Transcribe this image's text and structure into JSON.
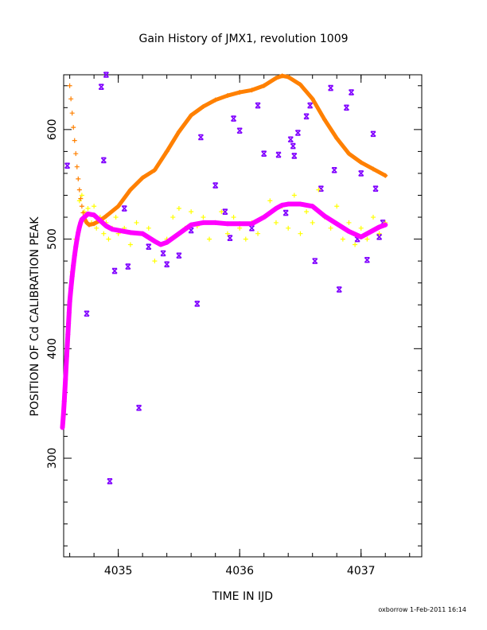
{
  "chart_data": {
    "type": "scatter",
    "title": "Gain History of JMX1, revolution 1009",
    "xlabel": "TIME IN IJD",
    "ylabel": "POSITION OF Cd CALIBRATION PEAK",
    "xlim": [
      4034.55,
      4037.5
    ],
    "ylim": [
      210,
      650
    ],
    "xticks": [
      4035,
      4036,
      4037
    ],
    "yticks": [
      300,
      400,
      500,
      600
    ],
    "grid": false,
    "legend": "none",
    "series": [
      {
        "marker": "x",
        "color": "#8000ff",
        "points": [
          [
            4034.58,
            567
          ],
          [
            4034.74,
            432
          ],
          [
            4034.86,
            639
          ],
          [
            4034.88,
            572
          ],
          [
            4034.9,
            650
          ],
          [
            4034.93,
            279
          ],
          [
            4034.97,
            471
          ],
          [
            4035.05,
            528
          ],
          [
            4035.08,
            475
          ],
          [
            4035.17,
            346
          ],
          [
            4035.25,
            493
          ],
          [
            4035.37,
            487
          ],
          [
            4035.4,
            477
          ],
          [
            4035.5,
            485
          ],
          [
            4035.6,
            508
          ],
          [
            4035.65,
            441
          ],
          [
            4035.68,
            593
          ],
          [
            4035.8,
            549
          ],
          [
            4035.88,
            525
          ],
          [
            4035.92,
            501
          ],
          [
            4035.95,
            610
          ],
          [
            4036.0,
            599
          ],
          [
            4036.1,
            510
          ],
          [
            4036.15,
            622
          ],
          [
            4036.2,
            578
          ],
          [
            4036.32,
            577
          ],
          [
            4036.38,
            524
          ],
          [
            4036.42,
            591
          ],
          [
            4036.45,
            576
          ],
          [
            4036.48,
            597
          ],
          [
            4036.55,
            612
          ],
          [
            4036.58,
            622
          ],
          [
            4036.62,
            480
          ],
          [
            4036.67,
            546
          ],
          [
            4036.75,
            638
          ],
          [
            4036.78,
            563
          ],
          [
            4036.82,
            454
          ],
          [
            4036.88,
            620
          ],
          [
            4036.92,
            634
          ],
          [
            4036.97,
            500
          ],
          [
            4037.0,
            560
          ],
          [
            4037.05,
            481
          ],
          [
            4037.1,
            596
          ],
          [
            4037.12,
            546
          ],
          [
            4037.15,
            502
          ],
          [
            4037.18,
            515
          ],
          [
            4036.44,
            585
          ]
        ]
      },
      {
        "marker": "+",
        "color": "#ffff00",
        "points": [
          [
            4034.62,
            470
          ],
          [
            4034.65,
            500
          ],
          [
            4034.68,
            535
          ],
          [
            4034.7,
            540
          ],
          [
            4034.72,
            525
          ],
          [
            4034.75,
            528
          ],
          [
            4034.78,
            515
          ],
          [
            4034.8,
            530
          ],
          [
            4034.82,
            510
          ],
          [
            4034.85,
            520
          ],
          [
            4034.88,
            505
          ],
          [
            4034.9,
            515
          ],
          [
            4034.92,
            500
          ],
          [
            4034.95,
            510
          ],
          [
            4034.98,
            520
          ],
          [
            4035.0,
            505
          ],
          [
            4035.05,
            510
          ],
          [
            4035.1,
            495
          ],
          [
            4035.15,
            515
          ],
          [
            4035.2,
            505
          ],
          [
            4035.25,
            510
          ],
          [
            4035.3,
            480
          ],
          [
            4035.35,
            495
          ],
          [
            4035.4,
            500
          ],
          [
            4035.45,
            520
          ],
          [
            4035.5,
            528
          ],
          [
            4035.55,
            510
          ],
          [
            4035.6,
            525
          ],
          [
            4035.65,
            512
          ],
          [
            4035.7,
            520
          ],
          [
            4035.75,
            500
          ],
          [
            4035.8,
            515
          ],
          [
            4035.85,
            525
          ],
          [
            4035.9,
            505
          ],
          [
            4035.95,
            520
          ],
          [
            4036.0,
            510
          ],
          [
            4036.05,
            500
          ],
          [
            4036.1,
            515
          ],
          [
            4036.15,
            505
          ],
          [
            4036.2,
            520
          ],
          [
            4036.25,
            535
          ],
          [
            4036.3,
            515
          ],
          [
            4036.35,
            530
          ],
          [
            4036.4,
            510
          ],
          [
            4036.45,
            540
          ],
          [
            4036.5,
            505
          ],
          [
            4036.55,
            525
          ],
          [
            4036.6,
            515
          ],
          [
            4036.65,
            545
          ],
          [
            4036.7,
            520
          ],
          [
            4036.75,
            510
          ],
          [
            4036.8,
            530
          ],
          [
            4036.85,
            500
          ],
          [
            4036.9,
            515
          ],
          [
            4036.95,
            495
          ],
          [
            4037.0,
            510
          ],
          [
            4037.05,
            500
          ],
          [
            4037.1,
            520
          ],
          [
            4037.15,
            505
          ],
          [
            4037.2,
            515
          ]
        ]
      },
      {
        "marker": "+",
        "color": "#ff8000",
        "points": [
          [
            4034.6,
            640
          ],
          [
            4034.61,
            628
          ],
          [
            4034.62,
            615
          ],
          [
            4034.63,
            602
          ],
          [
            4034.64,
            590
          ],
          [
            4034.65,
            578
          ],
          [
            4034.66,
            566
          ],
          [
            4034.67,
            555
          ],
          [
            4034.68,
            545
          ],
          [
            4034.69,
            537
          ],
          [
            4034.7,
            530
          ],
          [
            4034.71,
            524
          ],
          [
            4034.72,
            519
          ],
          [
            4034.74,
            515
          ],
          [
            4034.76,
            513
          ],
          [
            4034.8,
            514
          ],
          [
            4034.85,
            517
          ],
          [
            4034.9,
            521
          ],
          [
            4035.0,
            530
          ],
          [
            4035.1,
            545
          ],
          [
            4035.2,
            556
          ],
          [
            4035.3,
            563
          ],
          [
            4035.4,
            580
          ],
          [
            4035.5,
            598
          ],
          [
            4035.6,
            613
          ],
          [
            4035.7,
            621
          ],
          [
            4035.8,
            627
          ],
          [
            4035.9,
            631
          ],
          [
            4036.0,
            634
          ],
          [
            4036.1,
            636
          ],
          [
            4036.2,
            640
          ],
          [
            4036.3,
            647
          ],
          [
            4036.35,
            649
          ],
          [
            4036.4,
            648
          ],
          [
            4036.5,
            641
          ],
          [
            4036.6,
            628
          ],
          [
            4036.7,
            609
          ],
          [
            4036.8,
            592
          ],
          [
            4036.9,
            578
          ],
          [
            4037.0,
            570
          ],
          [
            4037.1,
            564
          ],
          [
            4037.2,
            558
          ]
        ]
      },
      {
        "marker": "+",
        "color": "#ff00ff",
        "points": [
          [
            4034.54,
            328
          ],
          [
            4034.545,
            335
          ],
          [
            4034.55,
            343
          ],
          [
            4034.555,
            352
          ],
          [
            4034.56,
            362
          ],
          [
            4034.565,
            372
          ],
          [
            4034.57,
            383
          ],
          [
            4034.575,
            393
          ],
          [
            4034.58,
            403
          ],
          [
            4034.585,
            413
          ],
          [
            4034.59,
            423
          ],
          [
            4034.595,
            433
          ],
          [
            4034.6,
            443
          ],
          [
            4034.61,
            455
          ],
          [
            4034.62,
            466
          ],
          [
            4034.63,
            476
          ],
          [
            4034.64,
            485
          ],
          [
            4034.65,
            493
          ],
          [
            4034.66,
            500
          ],
          [
            4034.67,
            506
          ],
          [
            4034.68,
            511
          ],
          [
            4034.69,
            515
          ],
          [
            4034.7,
            518
          ],
          [
            4034.72,
            520
          ],
          [
            4034.75,
            523
          ],
          [
            4034.8,
            522
          ],
          [
            4034.85,
            517
          ],
          [
            4034.9,
            512
          ],
          [
            4034.95,
            509
          ],
          [
            4035.0,
            508
          ],
          [
            4035.1,
            506
          ],
          [
            4035.2,
            505
          ],
          [
            4035.3,
            498
          ],
          [
            4035.35,
            495
          ],
          [
            4035.4,
            497
          ],
          [
            4035.5,
            505
          ],
          [
            4035.6,
            513
          ],
          [
            4035.7,
            515
          ],
          [
            4035.8,
            515
          ],
          [
            4035.9,
            514
          ],
          [
            4036.0,
            514
          ],
          [
            4036.1,
            514
          ],
          [
            4036.2,
            520
          ],
          [
            4036.3,
            528
          ],
          [
            4036.35,
            531
          ],
          [
            4036.4,
            532
          ],
          [
            4036.5,
            532
          ],
          [
            4036.6,
            530
          ],
          [
            4036.7,
            521
          ],
          [
            4036.8,
            514
          ],
          [
            4036.9,
            507
          ],
          [
            4037.0,
            502
          ],
          [
            4037.1,
            508
          ],
          [
            4037.15,
            511
          ],
          [
            4037.2,
            513
          ]
        ]
      }
    ]
  },
  "footer": {
    "credit": "oxborrow   1-Feb-2011 16:14"
  }
}
